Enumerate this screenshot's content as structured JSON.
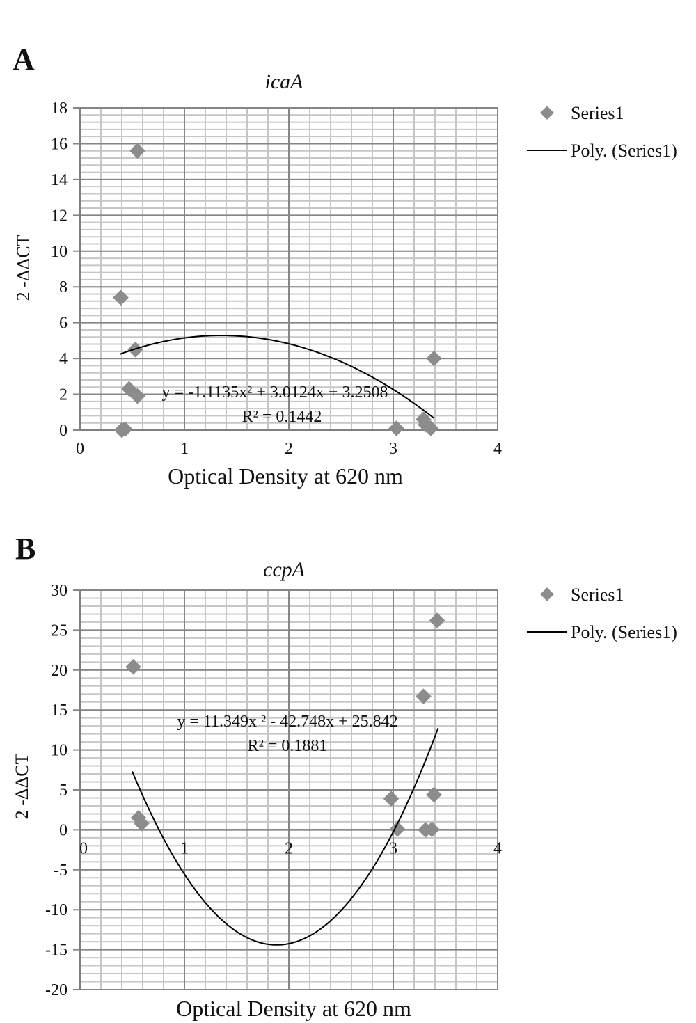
{
  "chart_data": [
    {
      "panel": "A",
      "type": "scatter",
      "title": "icaA",
      "xlabel": "Optical Density at 620 nm",
      "ylabel": "2 -ΔΔCT",
      "xlim": [
        0,
        4
      ],
      "ylim": [
        0,
        18
      ],
      "xticks": [
        0,
        1,
        2,
        3,
        4
      ],
      "yticks": [
        0,
        2,
        4,
        6,
        8,
        10,
        12,
        14,
        16,
        18
      ],
      "x_minor_step": 0.2,
      "y_minor_step": 0.4,
      "grid": true,
      "legend_position": "right",
      "legend": [
        "Series1",
        "Poly. (Series1)"
      ],
      "series": [
        {
          "name": "Series1",
          "x": [
            0.55,
            0.39,
            0.53,
            0.47,
            0.55,
            0.4,
            0.43,
            3.03,
            3.39,
            3.29,
            3.31,
            3.36
          ],
          "y": [
            15.6,
            7.4,
            4.5,
            2.3,
            1.9,
            0.0,
            0.05,
            0.1,
            4.0,
            0.6,
            0.3,
            0.1
          ]
        }
      ],
      "trendline": {
        "name": "Poly. (Series1)",
        "coefficients": [
          -1.1135,
          3.0124,
          3.2508
        ],
        "x_range": [
          0.38,
          3.39
        ]
      },
      "equation": "y = -1.1135x² + 3.0124x + 3.2508",
      "r_squared": "R² = 0.1442"
    },
    {
      "panel": "B",
      "type": "scatter",
      "title": "ccpA",
      "xlabel": "Optical Density at 620 nm",
      "ylabel": "2 -ΔΔCT",
      "xlim": [
        0,
        4
      ],
      "ylim": [
        -20,
        30
      ],
      "xticks": [
        0,
        1,
        2,
        3,
        4
      ],
      "yticks": [
        -20,
        -15,
        -10,
        -5,
        0,
        5,
        10,
        15,
        20,
        25,
        30
      ],
      "x_minor_step": 0.2,
      "y_minor_step": 1,
      "grid": true,
      "legend_position": "right",
      "legend": [
        "Series1",
        "Poly. (Series1)"
      ],
      "series": [
        {
          "name": "Series1",
          "x": [
            0.51,
            0.56,
            0.59,
            2.98,
            3.04,
            3.29,
            3.42,
            3.39,
            3.31,
            3.37
          ],
          "y": [
            20.4,
            1.5,
            0.8,
            3.9,
            0.1,
            16.7,
            26.2,
            4.4,
            0.0,
            0.05
          ]
        }
      ],
      "trendline": {
        "name": "Poly. (Series1)",
        "coefficients": [
          11.349,
          -42.748,
          25.842
        ],
        "x_range": [
          0.5,
          3.43
        ]
      },
      "equation": "y = 11.349x ² - 42.748x + 25.842",
      "r_squared": "R² = 0.1881"
    }
  ],
  "colors": {
    "marker": "#8c8c8c",
    "trend": "#000000",
    "major_grid": "#868686",
    "minor_grid": "#c6c6c6"
  }
}
